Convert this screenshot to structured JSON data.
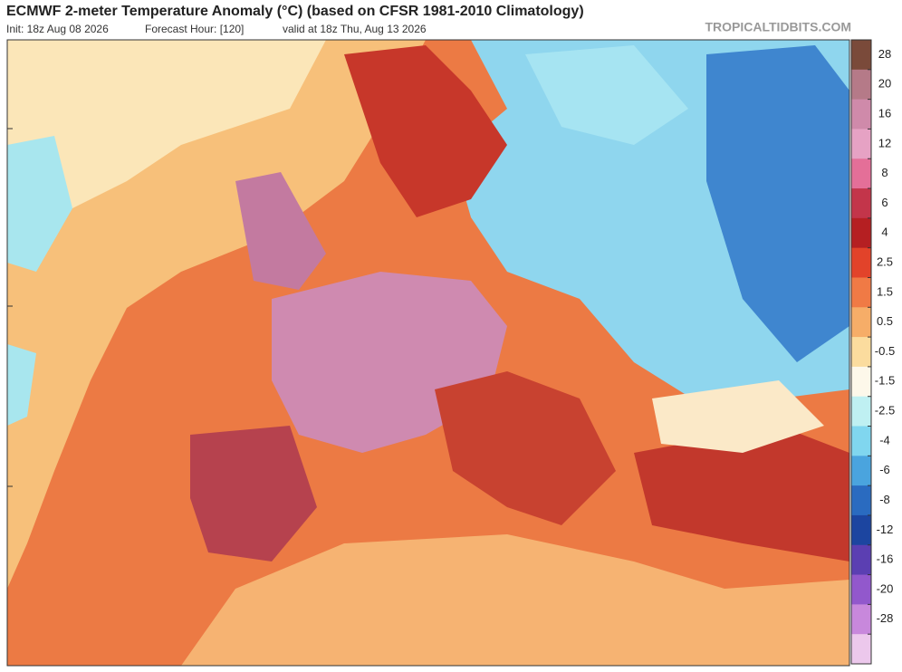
{
  "header": {
    "title": "ECMWF 2-meter Temperature Anomaly (°C) (based on CFSR 1981-2010 Climatology)",
    "init": "Init: 18z Aug 08 2026",
    "forecast_hour": "Forecast Hour: [120]",
    "valid": "valid at 18z Thu, Aug 13 2026",
    "brand": "TROPICALTIDBITS.COM"
  },
  "colorbar": {
    "ticks": [
      28,
      20,
      16,
      12,
      8,
      6,
      4,
      2.5,
      1.5,
      0.5,
      -0.5,
      -1.5,
      -2.5,
      -4,
      -6,
      -8,
      -12,
      -16,
      -20,
      -28
    ],
    "colors": [
      "#7a4a3a",
      "#b57a88",
      "#cf8aaa",
      "#e6a2c4",
      "#e46f98",
      "#c3354a",
      "#b51f22",
      "#e2432a",
      "#f07a45",
      "#f6ad68",
      "#fbdc9e",
      "#fdf8ea",
      "#bff0f2",
      "#80d6ef",
      "#4aa4de",
      "#2a6bc0",
      "#1c45a0",
      "#5b3fb2",
      "#9258cc",
      "#c888dc",
      "#ecc8ec"
    ]
  }
}
